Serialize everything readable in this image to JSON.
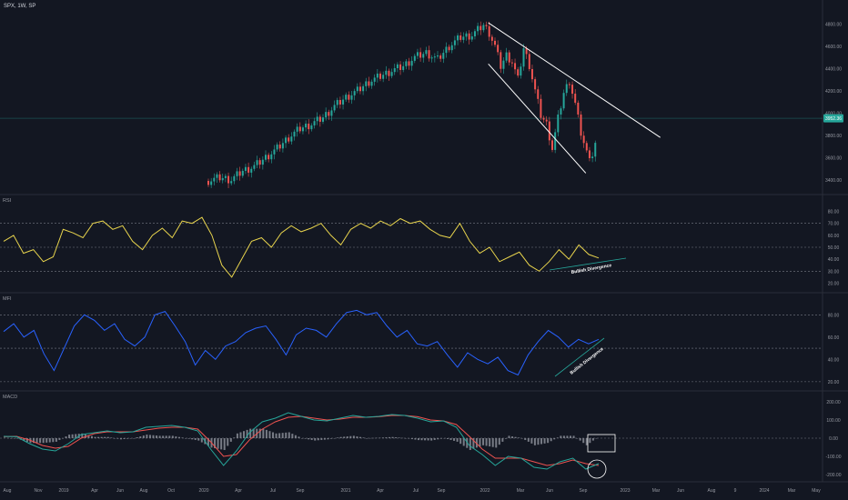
{
  "header": {
    "symbol": "SPX, 1W, SP"
  },
  "price": {
    "current_label": "3952.36",
    "ticks": [
      "4800.00",
      "4600.00",
      "4400.00",
      "4200.00",
      "4000.00",
      "3800.00",
      "3600.00",
      "3400.00"
    ],
    "tick_values": [
      4800,
      4600,
      4400,
      4200,
      4000,
      3800,
      3600,
      3400
    ],
    "ylim": [
      3300,
      4900
    ]
  },
  "panes": {
    "rsi": {
      "label": "RSI",
      "ticks": [
        "80.00",
        "70.00",
        "60.00",
        "50.00",
        "40.00",
        "30.00",
        "20.00"
      ],
      "divergence_label": "Bullish Divergence"
    },
    "mfi": {
      "label": "MFI",
      "ticks": [
        "80.00",
        "60.00",
        "40.00",
        "20.00"
      ],
      "divergence_label": "Bullish Divergence"
    },
    "macd": {
      "label": "MACD",
      "ticks": [
        "200.00",
        "100.00",
        "0.00",
        "-100.00",
        "-200.00"
      ]
    }
  },
  "time_axis": [
    "Aug",
    "Nov",
    "2019",
    "Apr",
    "Jun",
    "Aug",
    "Oct",
    "2020",
    "Apr",
    "Jul",
    "Sep",
    "2021",
    "Apr",
    "Jul",
    "Sep",
    "2022",
    "Mar",
    "Jun",
    "Sep",
    "2023",
    "Mar",
    "Jun",
    "Aug",
    "9",
    "2024",
    "Mar",
    "May"
  ],
  "colors": {
    "background": "#131722",
    "up": "#26a69a",
    "down": "#ef5350",
    "rsi_line": "#e8d44d",
    "mfi_line": "#2962ff",
    "macd_line": "#26a69a",
    "signal_line": "#ef5350",
    "histogram": "#8a8d96",
    "trendline": "#ffffff",
    "divergence_line": "#26a69a",
    "grid": "#2a2e39"
  },
  "chart_data": [
    {
      "type": "candlestick",
      "title": "SPX, 1W, SP",
      "ylim": [
        3300,
        4900
      ],
      "close_points": [
        [
          0,
          3390
        ],
        [
          4,
          3420
        ],
        [
          8,
          3400
        ],
        [
          12,
          3480
        ],
        [
          16,
          3520
        ],
        [
          20,
          3600
        ],
        [
          24,
          3680
        ],
        [
          28,
          3780
        ],
        [
          32,
          3860
        ],
        [
          36,
          3900
        ],
        [
          40,
          3960
        ],
        [
          44,
          4060
        ],
        [
          48,
          4140
        ],
        [
          52,
          4200
        ],
        [
          56,
          4280
        ],
        [
          60,
          4330
        ],
        [
          64,
          4380
        ],
        [
          68,
          4420
        ],
        [
          72,
          4500
        ],
        [
          76,
          4540
        ],
        [
          80,
          4480
        ],
        [
          84,
          4600
        ],
        [
          88,
          4680
        ],
        [
          92,
          4700
        ],
        [
          96,
          4790
        ],
        [
          98,
          4720
        ],
        [
          100,
          4600
        ],
        [
          102,
          4420
        ],
        [
          104,
          4520
        ],
        [
          106,
          4460
        ],
        [
          108,
          4300
        ],
        [
          110,
          4580
        ],
        [
          112,
          4430
        ],
        [
          114,
          4200
        ],
        [
          116,
          3980
        ],
        [
          118,
          3900
        ],
        [
          120,
          3680
        ],
        [
          122,
          3950
        ],
        [
          124,
          4180
        ],
        [
          126,
          4290
        ],
        [
          128,
          4080
        ],
        [
          130,
          3820
        ],
        [
          132,
          3640
        ],
        [
          134,
          3620
        ],
        [
          136,
          3820
        ]
      ],
      "current_value": 3952.36,
      "trendlines": [
        {
          "from": [
            98,
            4810
          ],
          "to": [
            158,
            3780
          ]
        },
        {
          "from": [
            98,
            4440
          ],
          "to": [
            132,
            3460
          ]
        }
      ]
    },
    {
      "type": "line",
      "name": "RSI",
      "ylim": [
        15,
        85
      ],
      "levels": [
        70,
        50,
        30
      ],
      "values": [
        55,
        60,
        45,
        48,
        38,
        42,
        65,
        62,
        58,
        70,
        72,
        65,
        68,
        55,
        48,
        60,
        66,
        58,
        72,
        70,
        75,
        60,
        35,
        25,
        40,
        55,
        58,
        50,
        62,
        68,
        63,
        66,
        70,
        60,
        52,
        65,
        70,
        66,
        72,
        68,
        74,
        70,
        72,
        65,
        60,
        58,
        70,
        55,
        45,
        50,
        38,
        42,
        46,
        35,
        30,
        38,
        48,
        40,
        52,
        44,
        41
      ]
    },
    {
      "type": "line",
      "name": "MFI",
      "ylim": [
        15,
        90
      ],
      "levels": [
        80,
        50,
        20
      ],
      "values": [
        65,
        72,
        60,
        66,
        45,
        30,
        50,
        70,
        80,
        75,
        66,
        72,
        58,
        52,
        60,
        80,
        83,
        70,
        56,
        35,
        48,
        40,
        52,
        56,
        64,
        68,
        70,
        58,
        44,
        62,
        68,
        66,
        60,
        72,
        82,
        84,
        80,
        82,
        70,
        60,
        66,
        54,
        52,
        56,
        44,
        33,
        46,
        40,
        36,
        42,
        30,
        26,
        44,
        56,
        66,
        60,
        51,
        58,
        54,
        58
      ]
    },
    {
      "type": "line",
      "name": "MACD",
      "ylim": [
        -220,
        220
      ],
      "series": [
        {
          "name": "MACD",
          "values": [
            10,
            8,
            -30,
            -60,
            -70,
            -30,
            20,
            30,
            40,
            30,
            35,
            60,
            65,
            70,
            60,
            40,
            -60,
            -150,
            -70,
            30,
            90,
            110,
            140,
            120,
            100,
            95,
            110,
            125,
            115,
            120,
            130,
            125,
            110,
            90,
            95,
            60,
            -40,
            -90,
            -150,
            -100,
            -110,
            -160,
            -170,
            -130,
            -110,
            -170,
            -140
          ]
        },
        {
          "name": "Signal",
          "values": [
            8,
            10,
            -10,
            -40,
            -55,
            -45,
            0,
            25,
            35,
            35,
            35,
            45,
            55,
            60,
            60,
            50,
            -20,
            -100,
            -90,
            -10,
            50,
            90,
            115,
            120,
            110,
            100,
            105,
            115,
            115,
            118,
            125,
            125,
            118,
            100,
            95,
            75,
            10,
            -60,
            -110,
            -110,
            -110,
            -130,
            -150,
            -140,
            -120,
            -140,
            -150
          ]
        }
      ]
    }
  ]
}
